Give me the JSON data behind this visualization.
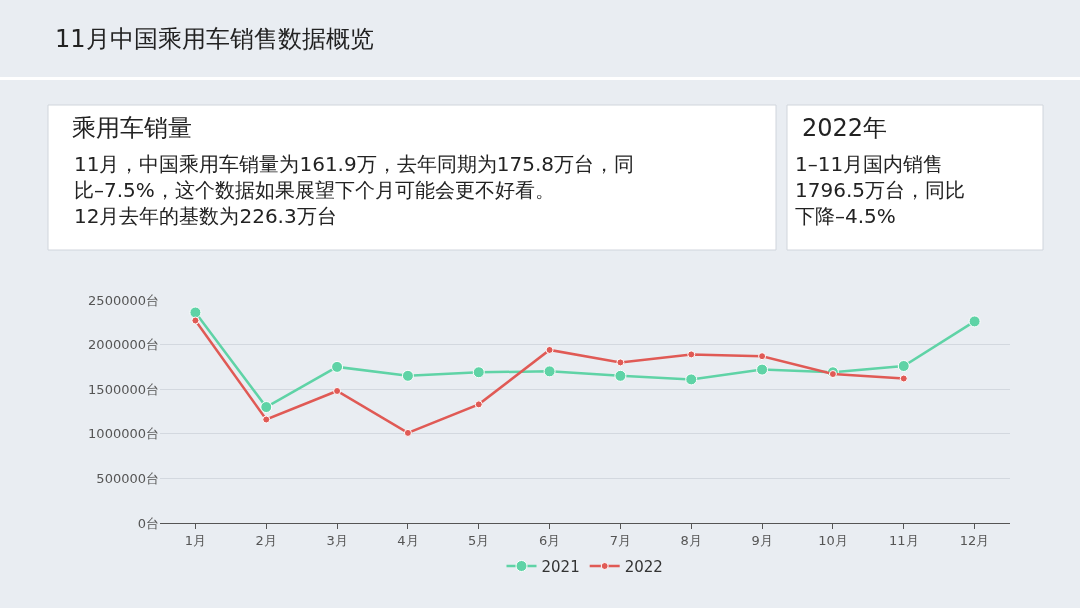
{
  "chart_data": {
    "type": "line",
    "title": "11月中国乘用车销售数据概览",
    "annotations": [
      "乘用车销量",
      "11月，中国乘用车销量为161.9万，去年同期为175.8万台，同比–7.5%，这个数据如果展望下个月可能会更不好看。\n12月去年的基数为226.3万台",
      "2022年",
      "1–11月国内销售\n1796.5万台，同比下降–4.5%"
    ],
    "categories": [
      "1月",
      "2月",
      "3月",
      "4月",
      "5月",
      "6月",
      "7月",
      "8月",
      "9月",
      "10月",
      "11月",
      "12月"
    ],
    "series": [
      {
        "name": "2021",
        "color": "#5fd3a6",
        "values": [
          2360000,
          1300000,
          1750000,
          1650000,
          1690000,
          1700000,
          1650000,
          1610000,
          1720000,
          1690000,
          1760000,
          2260000
        ]
      },
      {
        "name": "2022",
        "color": "#e05a55",
        "values": [
          2270000,
          1160000,
          1480000,
          1010000,
          1330000,
          1940000,
          1800000,
          1890000,
          1870000,
          1670000,
          1620000,
          null
        ]
      }
    ],
    "ylim": [
      0,
      2500000
    ],
    "yticks": [
      {
        "value": 0,
        "label": "0台"
      },
      {
        "value": 500000,
        "label": "500000台"
      },
      {
        "value": 1000000,
        "label": "1000000台"
      },
      {
        "value": 1500000,
        "label": "1500000台"
      },
      {
        "value": 2000000,
        "label": "2000000台"
      },
      {
        "value": 2500000,
        "label": "2500000台"
      }
    ],
    "grid": "y",
    "legend": "bottom",
    "marker": "circle",
    "line_style": "solid"
  }
}
